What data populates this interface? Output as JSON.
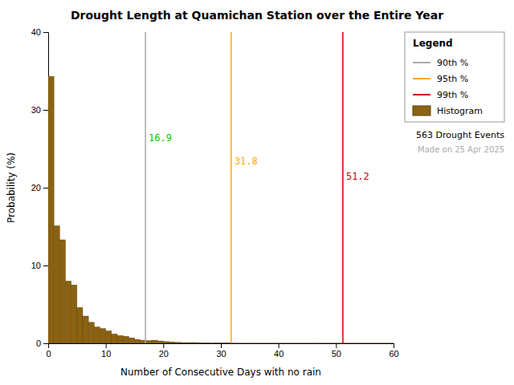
{
  "chart_data": {
    "type": "histogram",
    "title": "Drought Length at Quamichan Station over the Entire Year",
    "x_label": "Number of Consecutive Days with no rain",
    "y_label": "Probability (%)",
    "xlim": [
      0,
      60
    ],
    "ylim": [
      0,
      40
    ],
    "xticks": [
      0,
      10,
      20,
      30,
      40,
      50,
      60
    ],
    "yticks": [
      0,
      10,
      20,
      30,
      40
    ],
    "grid": false,
    "legend": "upper right",
    "legend_title": "Legend",
    "bins": [
      0,
      1,
      2,
      3,
      4,
      5,
      6,
      7,
      8,
      9,
      10,
      11,
      12,
      13,
      14,
      15,
      16,
      17,
      18,
      19,
      20,
      21,
      22,
      23,
      24,
      25,
      26,
      27,
      28,
      29,
      30,
      31,
      32,
      33,
      34,
      35,
      36,
      37,
      38,
      39,
      40,
      41,
      42,
      43,
      44,
      45,
      46,
      47,
      48,
      49,
      50,
      51,
      52,
      53,
      54,
      55,
      56,
      57,
      58,
      59,
      60
    ],
    "series": [
      {
        "name": "Histogram",
        "color": "#8B6213",
        "values": [
          34.3,
          15.1,
          13.3,
          8.0,
          7.5,
          4.6,
          3.5,
          2.7,
          2.1,
          1.9,
          1.6,
          1.2,
          1.0,
          0.9,
          0.7,
          0.5,
          0.4,
          0.35,
          0.4,
          0.3,
          0.22,
          0.18,
          0.12,
          0.1,
          0.1,
          0.1,
          0.07,
          0.06,
          0.05,
          0.05,
          0.05,
          0.06,
          0.02,
          0.02,
          0.02,
          0.02,
          0.02,
          0.02,
          0.02,
          0.02,
          0.02,
          0.02,
          0.02,
          0.02,
          0.02,
          0.02,
          0.02,
          0.02,
          0.02,
          0.02,
          0.02,
          0.02,
          0.02,
          0.02,
          0.02,
          0.02,
          0.02,
          0.02,
          0.02,
          0.02
        ]
      }
    ],
    "lines": [
      {
        "name": "90th %",
        "x": 16.9,
        "color": "#aaaaaa",
        "label": "16.9",
        "label_y": 26.0,
        "label_color": "#00cc00"
      },
      {
        "name": "95th %",
        "x": 31.8,
        "color": "#ffaa00",
        "label": "31.8",
        "label_y": 23.0,
        "label_color": "#ffaa00"
      },
      {
        "name": "99th %",
        "x": 51.2,
        "color": "#cc0000",
        "label": "51.2",
        "label_y": 21.0,
        "label_color": "#cc0000"
      }
    ],
    "annotations": [
      {
        "text": "563 Drought Events",
        "color": "#000000"
      },
      {
        "text": "Made on 25 Apr 2025",
        "color": "#aaaaaa"
      }
    ]
  }
}
